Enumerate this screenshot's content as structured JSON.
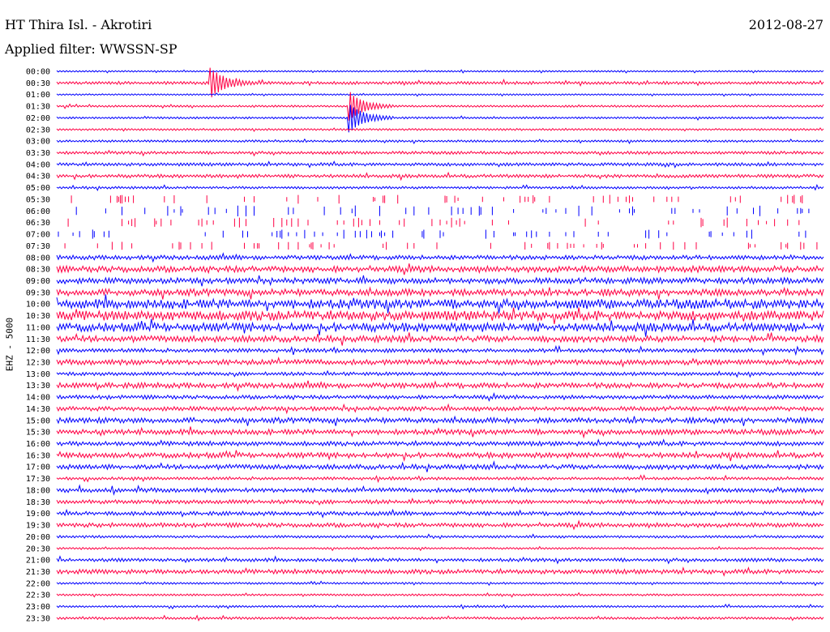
{
  "header": {
    "title": "HT Thira Isl. - Akrotiri",
    "date": "2012-08-27",
    "filter": "Applied filter: WWSSN-SP",
    "channel_label": "EHZ - 5000"
  },
  "colors": {
    "odd_trace": "#0000ff",
    "even_trace": "#ff0044",
    "background": "#ffffff"
  },
  "chart_data": {
    "type": "line",
    "chart_kind": "helicorder",
    "ylabel": "EHZ - 5000",
    "rows": [
      {
        "label": "00:00",
        "level": 0.05
      },
      {
        "label": "00:30",
        "level": 0.2,
        "event": 0.2
      },
      {
        "label": "01:00",
        "level": 0.05
      },
      {
        "label": "01:30",
        "level": 0.1,
        "event": 0.38
      },
      {
        "label": "02:00",
        "level": 0.1,
        "event": 0.38
      },
      {
        "label": "02:30",
        "level": 0.1
      },
      {
        "label": "03:00",
        "level": 0.12
      },
      {
        "label": "03:30",
        "level": 0.2
      },
      {
        "label": "04:00",
        "level": 0.22
      },
      {
        "label": "04:30",
        "level": 0.25
      },
      {
        "label": "05:00",
        "level": 0.15
      },
      {
        "label": "05:30",
        "level": 0.3,
        "gappy": true
      },
      {
        "label": "06:00",
        "level": 0.4,
        "gappy": true
      },
      {
        "label": "06:30",
        "level": 0.35,
        "gappy": true
      },
      {
        "label": "07:00",
        "level": 0.3,
        "gappy": true
      },
      {
        "label": "07:30",
        "level": 0.25,
        "gappy": true
      },
      {
        "label": "08:00",
        "level": 0.35
      },
      {
        "label": "08:30",
        "level": 0.55
      },
      {
        "label": "09:00",
        "level": 0.5
      },
      {
        "label": "09:30",
        "level": 0.6
      },
      {
        "label": "10:00",
        "level": 0.9
      },
      {
        "label": "10:30",
        "level": 0.9
      },
      {
        "label": "11:00",
        "level": 0.8
      },
      {
        "label": "11:30",
        "level": 0.55
      },
      {
        "label": "12:00",
        "level": 0.3
      },
      {
        "label": "12:30",
        "level": 0.45
      },
      {
        "label": "13:00",
        "level": 0.25
      },
      {
        "label": "13:30",
        "level": 0.45
      },
      {
        "label": "14:00",
        "level": 0.3
      },
      {
        "label": "14:30",
        "level": 0.35
      },
      {
        "label": "15:00",
        "level": 0.45
      },
      {
        "label": "15:30",
        "level": 0.45
      },
      {
        "label": "16:00",
        "level": 0.35
      },
      {
        "label": "16:30",
        "level": 0.45
      },
      {
        "label": "17:00",
        "level": 0.4
      },
      {
        "label": "17:30",
        "level": 0.2
      },
      {
        "label": "18:00",
        "level": 0.35
      },
      {
        "label": "18:30",
        "level": 0.3
      },
      {
        "label": "19:00",
        "level": 0.3
      },
      {
        "label": "19:30",
        "level": 0.35
      },
      {
        "label": "20:00",
        "level": 0.15
      },
      {
        "label": "20:30",
        "level": 0.1
      },
      {
        "label": "21:00",
        "level": 0.25
      },
      {
        "label": "21:30",
        "level": 0.35
      },
      {
        "label": "22:00",
        "level": 0.1
      },
      {
        "label": "22:30",
        "level": 0.1
      },
      {
        "label": "23:00",
        "level": 0.1
      },
      {
        "label": "23:30",
        "level": 0.15
      }
    ]
  }
}
